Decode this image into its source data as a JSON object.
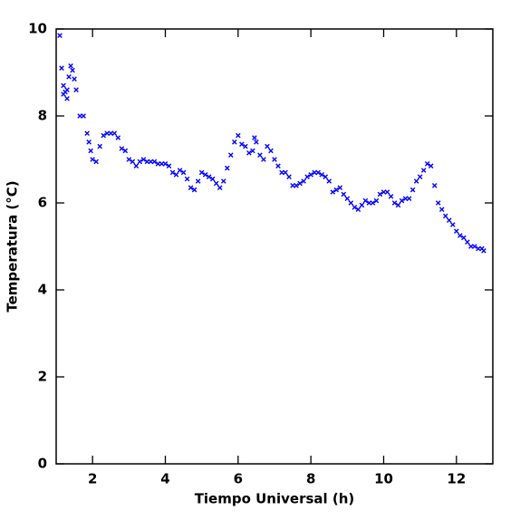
{
  "chart_data": {
    "type": "scatter",
    "x_label": "Tiempo Universal (h)",
    "y_label": "Temperatura (°C)",
    "color": "#0000ff",
    "xlim": [
      1,
      13
    ],
    "xticks": [
      2,
      4,
      6,
      8,
      10,
      12
    ],
    "ylim": [
      0,
      10
    ],
    "yticks": [
      0,
      2,
      4,
      6,
      8,
      10
    ],
    "x": [
      1.1,
      1.15,
      1.2,
      1.2,
      1.25,
      1.3,
      1.3,
      1.35,
      1.4,
      1.45,
      1.5,
      1.55,
      1.65,
      1.75,
      1.85,
      1.9,
      1.95,
      2.0,
      2.1,
      2.2,
      2.3,
      2.4,
      2.5,
      2.6,
      2.7,
      2.8,
      2.9,
      3.0,
      3.1,
      3.2,
      3.3,
      3.4,
      3.5,
      3.6,
      3.7,
      3.8,
      3.9,
      4.0,
      4.1,
      4.2,
      4.3,
      4.4,
      4.5,
      4.6,
      4.7,
      4.8,
      4.9,
      5.0,
      5.1,
      5.2,
      5.3,
      5.4,
      5.5,
      5.6,
      5.7,
      5.8,
      5.9,
      6.0,
      6.1,
      6.2,
      6.3,
      6.4,
      6.45,
      6.5,
      6.6,
      6.7,
      6.8,
      6.9,
      7.0,
      7.1,
      7.2,
      7.3,
      7.4,
      7.5,
      7.6,
      7.7,
      7.8,
      7.9,
      8.0,
      8.1,
      8.2,
      8.3,
      8.4,
      8.5,
      8.6,
      8.7,
      8.8,
      8.9,
      9.0,
      9.1,
      9.2,
      9.3,
      9.4,
      9.5,
      9.6,
      9.7,
      9.8,
      9.9,
      10.0,
      10.1,
      10.2,
      10.3,
      10.4,
      10.5,
      10.6,
      10.7,
      10.8,
      10.9,
      11.0,
      11.1,
      11.2,
      11.3,
      11.4,
      11.5,
      11.6,
      11.7,
      11.8,
      11.9,
      12.0,
      12.1,
      12.2,
      12.3,
      12.4,
      12.5,
      12.6,
      12.7,
      12.75
    ],
    "values": [
      9.85,
      9.1,
      8.7,
      8.5,
      8.55,
      8.4,
      8.6,
      8.9,
      9.15,
      9.05,
      8.85,
      8.6,
      8.0,
      8.0,
      7.6,
      7.4,
      7.2,
      7.0,
      6.95,
      7.3,
      7.55,
      7.6,
      7.6,
      7.6,
      7.5,
      7.25,
      7.2,
      7.0,
      6.95,
      6.85,
      6.95,
      7.0,
      6.95,
      6.95,
      6.95,
      6.9,
      6.9,
      6.9,
      6.85,
      6.7,
      6.65,
      6.75,
      6.7,
      6.55,
      6.35,
      6.3,
      6.5,
      6.7,
      6.65,
      6.6,
      6.55,
      6.45,
      6.35,
      6.5,
      6.8,
      7.1,
      7.4,
      7.55,
      7.35,
      7.3,
      7.15,
      7.2,
      7.5,
      7.4,
      7.1,
      7.0,
      7.3,
      7.2,
      7.0,
      6.85,
      6.7,
      6.7,
      6.6,
      6.4,
      6.4,
      6.45,
      6.5,
      6.6,
      6.65,
      6.7,
      6.7,
      6.65,
      6.6,
      6.5,
      6.25,
      6.3,
      6.35,
      6.2,
      6.1,
      6.0,
      5.9,
      5.85,
      5.95,
      6.05,
      6.0,
      6.0,
      6.05,
      6.2,
      6.25,
      6.25,
      6.15,
      6.0,
      5.95,
      6.05,
      6.1,
      6.1,
      6.3,
      6.5,
      6.6,
      6.75,
      6.9,
      6.85,
      6.4,
      6.0,
      5.85,
      5.7,
      5.6,
      5.5,
      5.35,
      5.25,
      5.2,
      5.1,
      5.0,
      5.0,
      4.95,
      4.95,
      4.9
    ]
  }
}
